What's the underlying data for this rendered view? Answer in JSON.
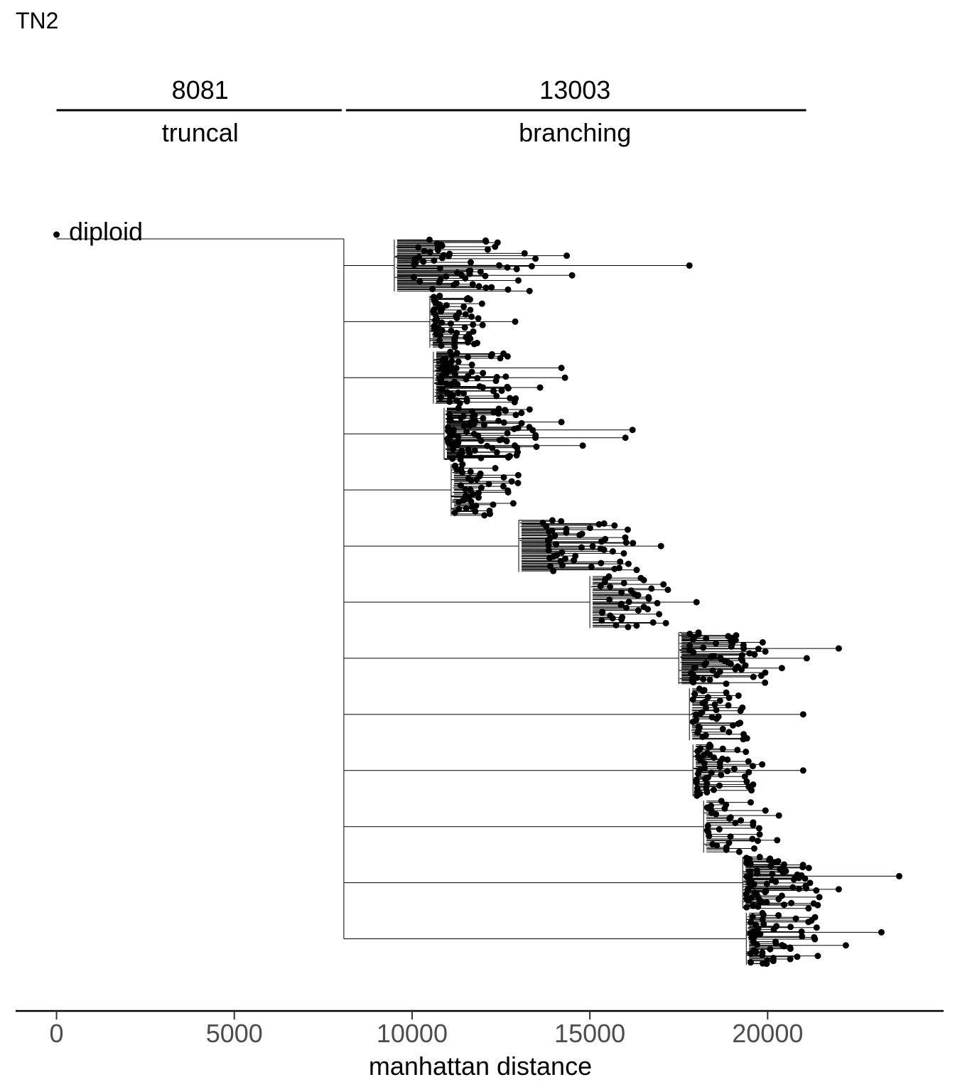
{
  "chart_data": {
    "type": "scatter",
    "subtype": "phylogenetic-tree",
    "title": "TN2",
    "xlabel": "manhattan distance",
    "ylabel": "",
    "xlim": [
      -1150,
      24950
    ],
    "x_ticks": [
      0,
      5000,
      10000,
      15000,
      20000
    ],
    "x_tick_labels": [
      "0",
      "5000",
      "10000",
      "15000",
      "20000"
    ],
    "grid": false,
    "legend": "none",
    "point_color": "#000000",
    "branch_color": "#000000",
    "segments": [
      {
        "label": "truncal",
        "count_label": "8081",
        "start": 0,
        "end": 8081
      },
      {
        "label": "branching",
        "count_label": "13003",
        "start": 8081,
        "end": 21084
      }
    ],
    "root": {
      "label": "diploid",
      "x": 0
    },
    "trunk_end": 8081,
    "clades": [
      {
        "stem_x": 9500,
        "x_min": 10050,
        "x_max": 13500,
        "n": 55,
        "seed": 11,
        "outliers": [
          14350,
          17800,
          14500
        ]
      },
      {
        "stem_x": 10500,
        "x_min": 10600,
        "x_max": 12000,
        "n": 55,
        "seed": 22,
        "outliers": [
          12900
        ]
      },
      {
        "stem_x": 10600,
        "x_min": 10800,
        "x_max": 13000,
        "n": 70,
        "seed": 33,
        "outliers": [
          14200,
          14300,
          13600
        ]
      },
      {
        "stem_x": 10900,
        "x_min": 11000,
        "x_max": 13500,
        "n": 75,
        "seed": 44,
        "outliers": [
          14200,
          16200,
          16000,
          14800
        ]
      },
      {
        "stem_x": 11100,
        "x_min": 11200,
        "x_max": 13000,
        "n": 45,
        "seed": 55,
        "outliers": []
      },
      {
        "stem_x": 13000,
        "x_min": 13600,
        "x_max": 16500,
        "n": 50,
        "seed": 66,
        "outliers": [
          17000
        ]
      },
      {
        "stem_x": 15000,
        "x_min": 15300,
        "x_max": 17300,
        "n": 40,
        "seed": 77,
        "outliers": [
          18000
        ]
      },
      {
        "stem_x": 17500,
        "x_min": 17800,
        "x_max": 20000,
        "n": 60,
        "seed": 88,
        "outliers": [
          22000,
          21100,
          20400
        ]
      },
      {
        "stem_x": 17800,
        "x_min": 17900,
        "x_max": 19500,
        "n": 40,
        "seed": 99,
        "outliers": [
          21000
        ]
      },
      {
        "stem_x": 17900,
        "x_min": 18000,
        "x_max": 20000,
        "n": 50,
        "seed": 111,
        "outliers": [
          21000
        ]
      },
      {
        "stem_x": 18200,
        "x_min": 18300,
        "x_max": 20500,
        "n": 35,
        "seed": 122,
        "outliers": []
      },
      {
        "stem_x": 19300,
        "x_min": 19400,
        "x_max": 21500,
        "n": 70,
        "seed": 133,
        "outliers": [
          23700,
          22000
        ]
      },
      {
        "stem_x": 19400,
        "x_min": 19500,
        "x_max": 21500,
        "n": 50,
        "seed": 144,
        "outliers": [
          23200,
          22200
        ]
      }
    ]
  }
}
